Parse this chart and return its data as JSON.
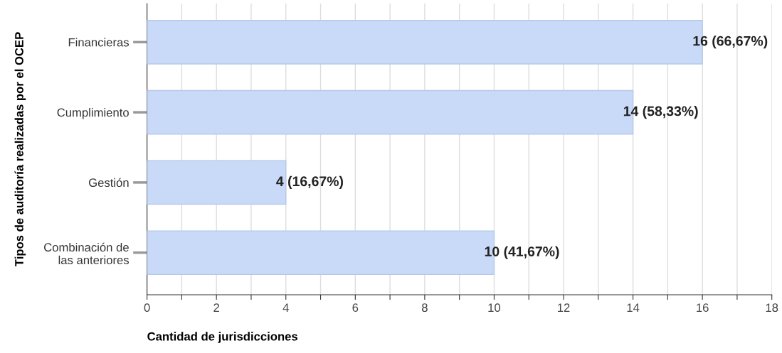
{
  "chart_data": {
    "type": "bar",
    "orientation": "horizontal",
    "xlabel": "Cantidad de jurisdicciones",
    "ylabel": "Tipos de auditoría realizadas por el OCEP",
    "categories": [
      "Financieras",
      "Cumplimiento",
      "Gestión",
      "Combinación de\nlas anteriores"
    ],
    "values": [
      16,
      14,
      4,
      10
    ],
    "value_labels": [
      "16 (66,67%)",
      "14 (58,33%)",
      "4 (16,67%)",
      "10 (41,67%)"
    ],
    "color": "#c9daf8",
    "xlim": [
      0,
      18
    ],
    "xticks": [
      0,
      {
        "value": 1,
        "label": null
      },
      2,
      {
        "value": 3,
        "label": null
      },
      4,
      {
        "value": 5,
        "label": null
      },
      6,
      {
        "value": 7,
        "label": null
      },
      8,
      {
        "value": 9,
        "label": null
      },
      10,
      {
        "value": 11,
        "label": null
      },
      12,
      {
        "value": 13,
        "label": null
      },
      14,
      {
        "value": 15,
        "label": null
      },
      16,
      {
        "value": 17,
        "label": null
      },
      18
    ],
    "grid": "x",
    "legend": false
  }
}
